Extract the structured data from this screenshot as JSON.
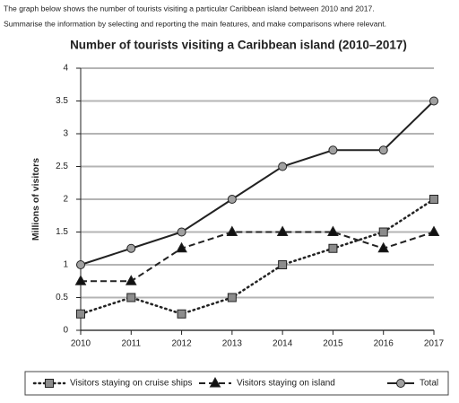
{
  "intro": [
    "The graph below shows the number of tourists visiting a particular Caribbean island between 2010 and 2017.",
    "Summarise the information by selecting and reporting the main features, and make comparisons where relevant."
  ],
  "chart_data": {
    "type": "line",
    "title": "Number of tourists visiting a Caribbean island (2010–2017)",
    "y_label": "Millions of visitors",
    "x": [
      2010,
      2011,
      2012,
      2013,
      2014,
      2015,
      2016,
      2017
    ],
    "xlim": [
      2010,
      2017
    ],
    "xticks": [
      2010,
      2011,
      2012,
      2013,
      2014,
      2015,
      2016,
      2017
    ],
    "ylim": [
      0,
      4
    ],
    "yticks": [
      0,
      0.5,
      1,
      1.5,
      2,
      2.5,
      3,
      3.5,
      4
    ],
    "grid": true,
    "series": [
      {
        "name": "Visitors staying on cruise ships",
        "color": "#222222",
        "marker_color": "#8c8c8c",
        "style": "dotted",
        "marker": "square",
        "values": [
          0.25,
          0.5,
          0.25,
          0.5,
          1,
          1.25,
          1.5,
          2
        ]
      },
      {
        "name": "Visitors staying on island",
        "color": "#222222",
        "marker_color": "#111111",
        "style": "dashed",
        "marker": "triangle",
        "values": [
          0.75,
          0.75,
          1.25,
          1.5,
          1.5,
          1.5,
          1.25,
          1.5
        ]
      },
      {
        "name": "Total",
        "color": "#222222",
        "marker_color": "#a0a0a0",
        "style": "solid",
        "marker": "circle",
        "values": [
          1,
          1.25,
          1.5,
          2,
          2.5,
          2.75,
          2.75,
          3.5
        ]
      }
    ]
  }
}
